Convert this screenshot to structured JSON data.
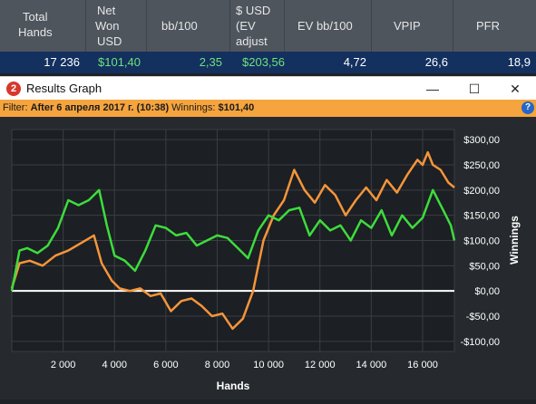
{
  "stats_table": {
    "headers": [
      {
        "lines": [
          "Total",
          "Hands"
        ]
      },
      {
        "lines": [
          "Net",
          "Won",
          "USD"
        ]
      },
      {
        "lines": [
          "bb/100"
        ]
      },
      {
        "lines": [
          "$ USD",
          "(EV",
          "adjust"
        ]
      },
      {
        "lines": [
          "EV bb/100"
        ]
      },
      {
        "lines": [
          "VPIP"
        ]
      },
      {
        "lines": [
          "PFR"
        ]
      }
    ],
    "row": [
      "17 236",
      "$101,40",
      "2,35",
      "$203,56",
      "4,72",
      "26,6",
      "18,9"
    ],
    "value_colors": [
      "#ffffff",
      "#6fe27a",
      "#6fe27a",
      "#6fe27a",
      "#ffffff",
      "#ffffff",
      "#ffffff"
    ]
  },
  "window": {
    "icon_text": "2",
    "title": "Results Graph",
    "minimize_glyph": "—",
    "maximize_glyph": "☐",
    "close_glyph": "✕"
  },
  "filter": {
    "prefix": "Filter: ",
    "value": "After 6 апреля 2017 г. (10:38)",
    "winnings_label": " Winnings: ",
    "winnings_value": "$101,40",
    "help_glyph": "?"
  },
  "chart_data": {
    "type": "line",
    "xlabel": "Hands",
    "ylabel": "Winnings",
    "xlim": [
      0,
      17236
    ],
    "ylim": [
      -120,
      320
    ],
    "x_ticks": [
      2000,
      4000,
      6000,
      8000,
      10000,
      12000,
      14000,
      16000
    ],
    "x_tick_labels": [
      "2 000",
      "4 000",
      "6 000",
      "8 000",
      "10 000",
      "12 000",
      "14 000",
      "16 000"
    ],
    "y_ticks": [
      300,
      250,
      200,
      150,
      100,
      50,
      0,
      -50,
      -100
    ],
    "y_tick_labels": [
      "$300,00",
      "$250,00",
      "$200,00",
      "$150,00",
      "$100,00",
      "$50,00",
      "$0,00",
      "-$50,00",
      "-$100,00"
    ],
    "grid": true,
    "zero_line_color": "#ffffff",
    "series": [
      {
        "color": "#f5953a",
        "x": [
          0,
          300,
          700,
          1200,
          1700,
          2200,
          2700,
          3200,
          3500,
          3900,
          4200,
          4600,
          5000,
          5400,
          5800,
          6200,
          6600,
          7000,
          7400,
          7800,
          8200,
          8600,
          9000,
          9400,
          9800,
          10200,
          10600,
          11000,
          11400,
          11800,
          12200,
          12600,
          13000,
          13400,
          13800,
          14200,
          14600,
          15000,
          15400,
          15800,
          16000,
          16200,
          16400,
          16700,
          17000,
          17236
        ],
        "y": [
          5,
          55,
          60,
          50,
          70,
          80,
          95,
          110,
          55,
          20,
          5,
          0,
          5,
          -10,
          -5,
          -40,
          -20,
          -15,
          -30,
          -50,
          -45,
          -75,
          -55,
          0,
          100,
          150,
          180,
          240,
          200,
          175,
          210,
          190,
          150,
          180,
          205,
          180,
          220,
          195,
          230,
          260,
          250,
          275,
          250,
          240,
          215,
          205
        ]
      },
      {
        "color": "#3ddc3d",
        "x": [
          0,
          300,
          600,
          1000,
          1400,
          1800,
          2200,
          2600,
          3000,
          3400,
          3700,
          4000,
          4400,
          4800,
          5200,
          5600,
          6000,
          6400,
          6800,
          7200,
          7600,
          8000,
          8400,
          8800,
          9200,
          9600,
          10000,
          10400,
          10800,
          11200,
          11600,
          12000,
          12400,
          12800,
          13200,
          13600,
          14000,
          14400,
          14800,
          15200,
          15600,
          16000,
          16400,
          16800,
          17100,
          17236
        ],
        "y": [
          0,
          80,
          85,
          75,
          90,
          125,
          180,
          170,
          180,
          200,
          130,
          70,
          60,
          40,
          80,
          130,
          125,
          110,
          115,
          90,
          100,
          110,
          105,
          85,
          65,
          120,
          150,
          140,
          160,
          165,
          110,
          140,
          120,
          130,
          100,
          140,
          125,
          160,
          110,
          150,
          125,
          145,
          200,
          160,
          130,
          100
        ]
      }
    ]
  }
}
